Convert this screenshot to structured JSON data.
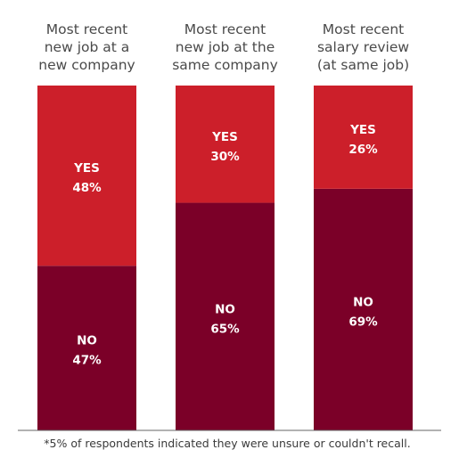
{
  "chart_data": {
    "type": "bar",
    "stacked": true,
    "categories": [
      [
        "Most recent",
        "new job at a",
        "new company"
      ],
      [
        "Most recent",
        "new job at the",
        "same company"
      ],
      [
        "Most recent",
        "salary review",
        "(at same job)"
      ]
    ],
    "series": [
      {
        "name": "NO",
        "values": [
          47,
          65,
          69
        ],
        "color": "#7b0028"
      },
      {
        "name": "YES",
        "values": [
          48,
          30,
          26
        ],
        "color": "#cc1f2a"
      }
    ],
    "label_suffix": "%",
    "ylim": [
      0,
      100
    ],
    "grid": false,
    "legend": "none",
    "footnote": "*5% of respondents indicated they were unsure or couldn't recall."
  }
}
